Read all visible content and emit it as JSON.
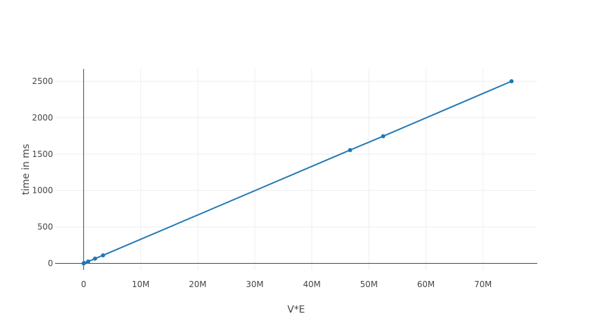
{
  "chart_data": {
    "type": "line",
    "title": "",
    "xlabel": "V*E",
    "ylabel": "time in ms",
    "xlim": [
      -5000000,
      79500000
    ],
    "ylim": [
      -90,
      2670
    ],
    "grid": true,
    "x_ticks": [
      {
        "value": 0,
        "label": "0"
      },
      {
        "value": 10000000,
        "label": "10M"
      },
      {
        "value": 20000000,
        "label": "20M"
      },
      {
        "value": 30000000,
        "label": "30M"
      },
      {
        "value": 40000000,
        "label": "40M"
      },
      {
        "value": 50000000,
        "label": "50M"
      },
      {
        "value": 60000000,
        "label": "60M"
      },
      {
        "value": 70000000,
        "label": "70M"
      }
    ],
    "y_ticks": [
      {
        "value": 0,
        "label": "0"
      },
      {
        "value": 500,
        "label": "500"
      },
      {
        "value": 1000,
        "label": "1000"
      },
      {
        "value": 1500,
        "label": "1500"
      },
      {
        "value": 2000,
        "label": "2000"
      },
      {
        "value": 2500,
        "label": "2500"
      }
    ],
    "series": [
      {
        "color": "#1f77b4",
        "x": [
          0,
          100000,
          800000,
          2000000,
          3400000,
          46700000,
          52500000,
          75000000
        ],
        "y": [
          0,
          5,
          25,
          65,
          110,
          1555,
          1745,
          2500
        ]
      }
    ]
  }
}
